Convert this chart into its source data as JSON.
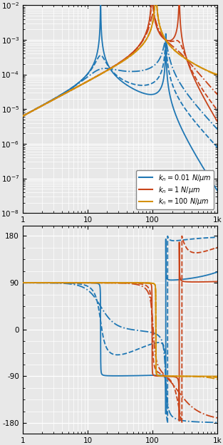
{
  "colors": {
    "blue": "#1f77b4",
    "red": "#c8441a",
    "gold": "#d4900a"
  },
  "bg_color": "#e8e8e8",
  "grid_color": "#ffffff",
  "legend_labels": [
    "$k_n = 0.01\\ N/\\mu m$",
    "$k_n = 1\\ N/\\mu m$",
    "$k_n = 100\\ N/\\mu m$"
  ],
  "fig_width": 3.13,
  "fig_height": 6.25,
  "freq_min": 1,
  "freq_max": 1000,
  "phase_ylim_low": -200,
  "phase_ylim_high": 200
}
